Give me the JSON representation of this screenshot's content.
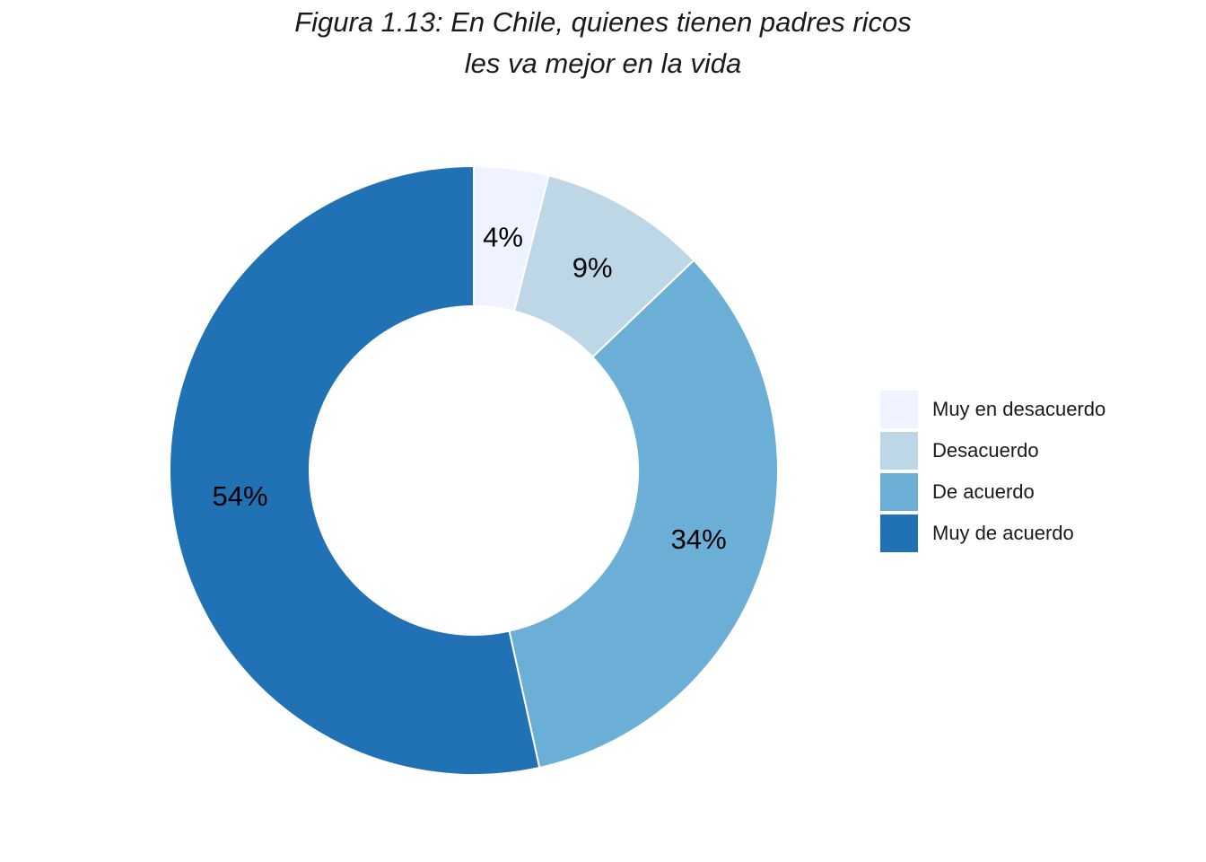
{
  "title": {
    "line1": "Figura 1.13: En Chile, quienes tienen padres ricos",
    "line2": "les va mejor en la vida"
  },
  "chart_data": {
    "type": "pie",
    "subtype": "donut",
    "title": "Figura 1.13: En Chile, quienes tienen padres ricos les va mejor en la vida",
    "unit": "%",
    "legend_position": "right",
    "slices": [
      {
        "label": "Muy en desacuerdo",
        "value": 4,
        "display": "4%",
        "color": "#eff3ff"
      },
      {
        "label": "Desacuerdo",
        "value": 9,
        "display": "9%",
        "color": "#bdd7e7"
      },
      {
        "label": "De acuerdo",
        "value": 34,
        "display": "34%",
        "color": "#6baed6"
      },
      {
        "label": "Muy de acuerdo",
        "value": 54,
        "display": "54%",
        "color": "#2171b5"
      }
    ]
  }
}
